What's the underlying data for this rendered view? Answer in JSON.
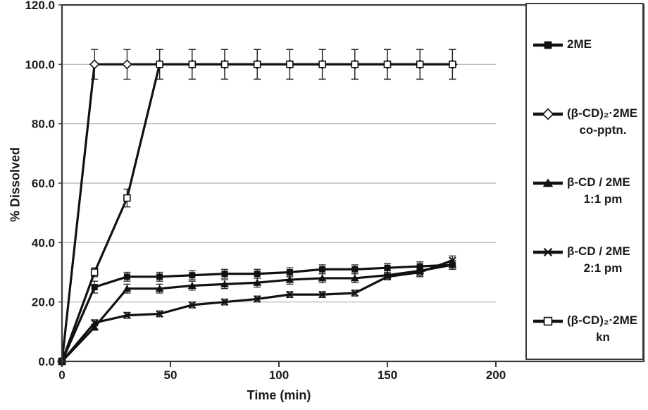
{
  "chart_data": {
    "type": "line",
    "title": "",
    "xlabel": "Time (min)",
    "ylabel": "% Dissolved",
    "x": [
      0,
      15,
      30,
      45,
      60,
      75,
      90,
      105,
      120,
      135,
      150,
      165,
      180
    ],
    "xlim": [
      0,
      200
    ],
    "ylim": [
      0,
      120
    ],
    "xticks": [
      "0",
      "50",
      "100",
      "150",
      "200"
    ],
    "xtick_values": [
      0,
      50,
      100,
      150,
      200
    ],
    "yticks": [
      "0.0",
      "20.0",
      "40.0",
      "60.0",
      "80.0",
      "100.0",
      "120.0"
    ],
    "ytick_values": [
      0,
      20,
      40,
      60,
      80,
      100,
      120
    ],
    "grid": "horizontal-only",
    "legend_position": "right-inside-box",
    "error_bars": true,
    "series": [
      {
        "name": "2ME",
        "label_lines": [
          "2ME"
        ],
        "marker": "square-filled",
        "values": [
          0,
          25,
          28.5,
          28.5,
          29,
          29.5,
          29.5,
          30,
          31,
          31,
          31.5,
          32,
          32.5
        ],
        "errors": [
          0,
          2,
          1.5,
          1.5,
          1.5,
          1.5,
          1.5,
          1.5,
          1.5,
          1.5,
          1.5,
          1.5,
          1.5
        ]
      },
      {
        "name": "(β-CD)₂·2ME co-pptn.",
        "label_lines": [
          "(β-CD)₂·2ME",
          "co-pptn."
        ],
        "marker": "diamond-open",
        "values": [
          0,
          100,
          100,
          100,
          100,
          100,
          100,
          100,
          100,
          100,
          100,
          100,
          100
        ],
        "errors": [
          0,
          5,
          5,
          5,
          5,
          5,
          5,
          5,
          5,
          5,
          5,
          5,
          5
        ]
      },
      {
        "name": "β-CD / 2ME 1:1 pm",
        "label_lines": [
          "β-CD / 2ME",
          "1:1 pm"
        ],
        "marker": "triangle-filled",
        "values": [
          0,
          11.5,
          24.5,
          24.5,
          25.5,
          26,
          26.5,
          27.5,
          28,
          28,
          29,
          30.5,
          32.5
        ],
        "errors": [
          0,
          1,
          1.5,
          1.5,
          1.5,
          1.5,
          1.5,
          1.5,
          1.5,
          1.5,
          1.5,
          1.5,
          1.5
        ]
      },
      {
        "name": "β-CD / 2ME 2:1 pm",
        "label_lines": [
          "β-CD / 2ME",
          "2:1 pm"
        ],
        "marker": "x",
        "values": [
          0,
          13,
          15.5,
          16,
          19,
          20,
          21,
          22.5,
          22.5,
          23,
          28.5,
          30,
          34
        ],
        "errors": [
          0,
          1,
          1,
          1,
          1,
          1,
          1,
          1,
          1,
          1,
          1,
          1.5,
          1.5
        ]
      },
      {
        "name": "(β-CD)₂·2ME kn",
        "label_lines": [
          "(β-CD)₂·2ME",
          "kn"
        ],
        "marker": "square-open",
        "values": [
          0,
          30,
          55,
          100,
          100,
          100,
          100,
          100,
          100,
          100,
          100,
          100,
          100
        ],
        "errors": [
          0,
          1.5,
          3,
          5,
          5,
          5,
          5,
          5,
          5,
          5,
          5,
          5,
          5
        ]
      }
    ],
    "colors": {
      "line": "#111111",
      "grid": "#b0b0b0",
      "frame": "#3a3a3a",
      "text": "#1a1a1a",
      "error_bar": "#222222",
      "open_marker_fill": "#ffffff",
      "background": "#ffffff"
    }
  }
}
